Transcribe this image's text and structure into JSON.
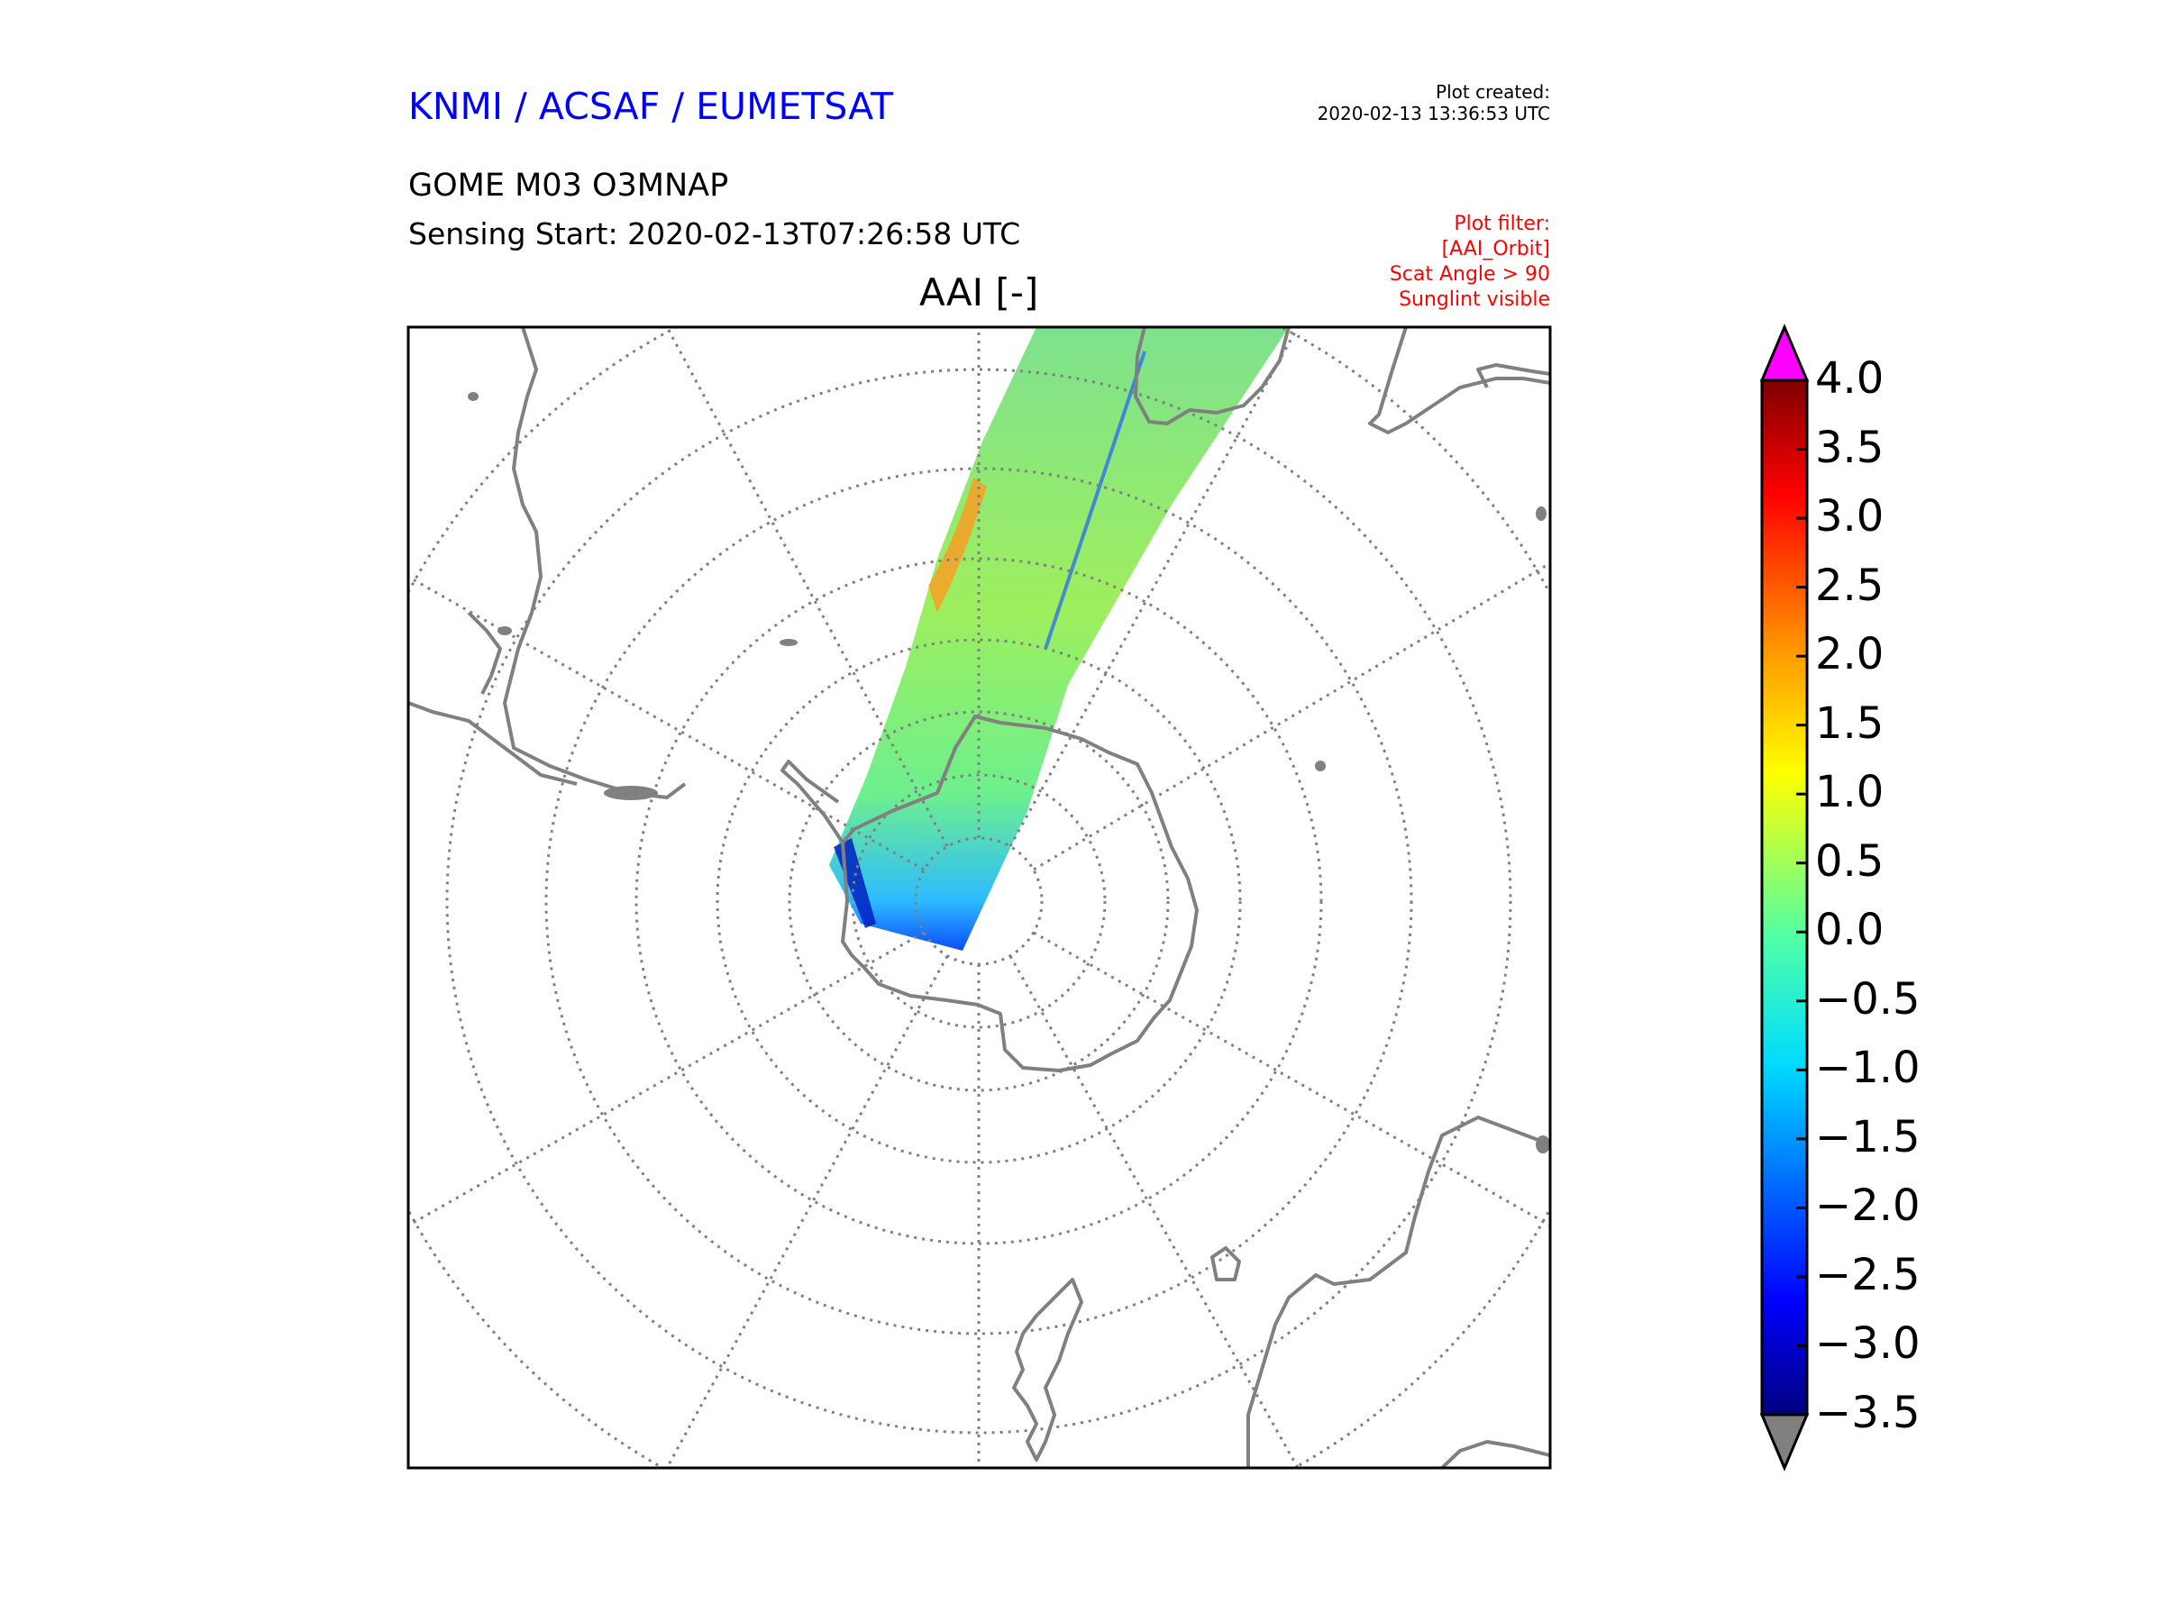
{
  "header": {
    "organization": "KNMI / ACSAF / EUMETSAT",
    "plot_created_label": "Plot created:",
    "plot_created_time": "2020-02-13 13:36:53 UTC",
    "product": "GOME M03 O3MNAP",
    "sensing_start": "Sensing Start: 2020-02-13T07:26:58 UTC",
    "filters": [
      "Plot filter:",
      "[AAI_Orbit]",
      "Scat Angle > 90",
      "Sunglint visible"
    ]
  },
  "map": {
    "title": "AAI [-]",
    "projection": "south-polar-stereographic",
    "graticule": "dotted",
    "coastline_color": "#808080",
    "frame_color": "#000000"
  },
  "colorbar": {
    "ticks": [
      "4.0",
      "3.5",
      "3.0",
      "2.5",
      "2.0",
      "1.5",
      "1.0",
      "0.5",
      "0.0",
      "−0.5",
      "−1.0",
      "−1.5",
      "−2.0",
      "−2.5",
      "−3.0",
      "−3.5"
    ],
    "min": -3.5,
    "max": 4.0,
    "over_color": "#ff00ff",
    "under_color": "#808080",
    "colormap": "jet"
  }
}
